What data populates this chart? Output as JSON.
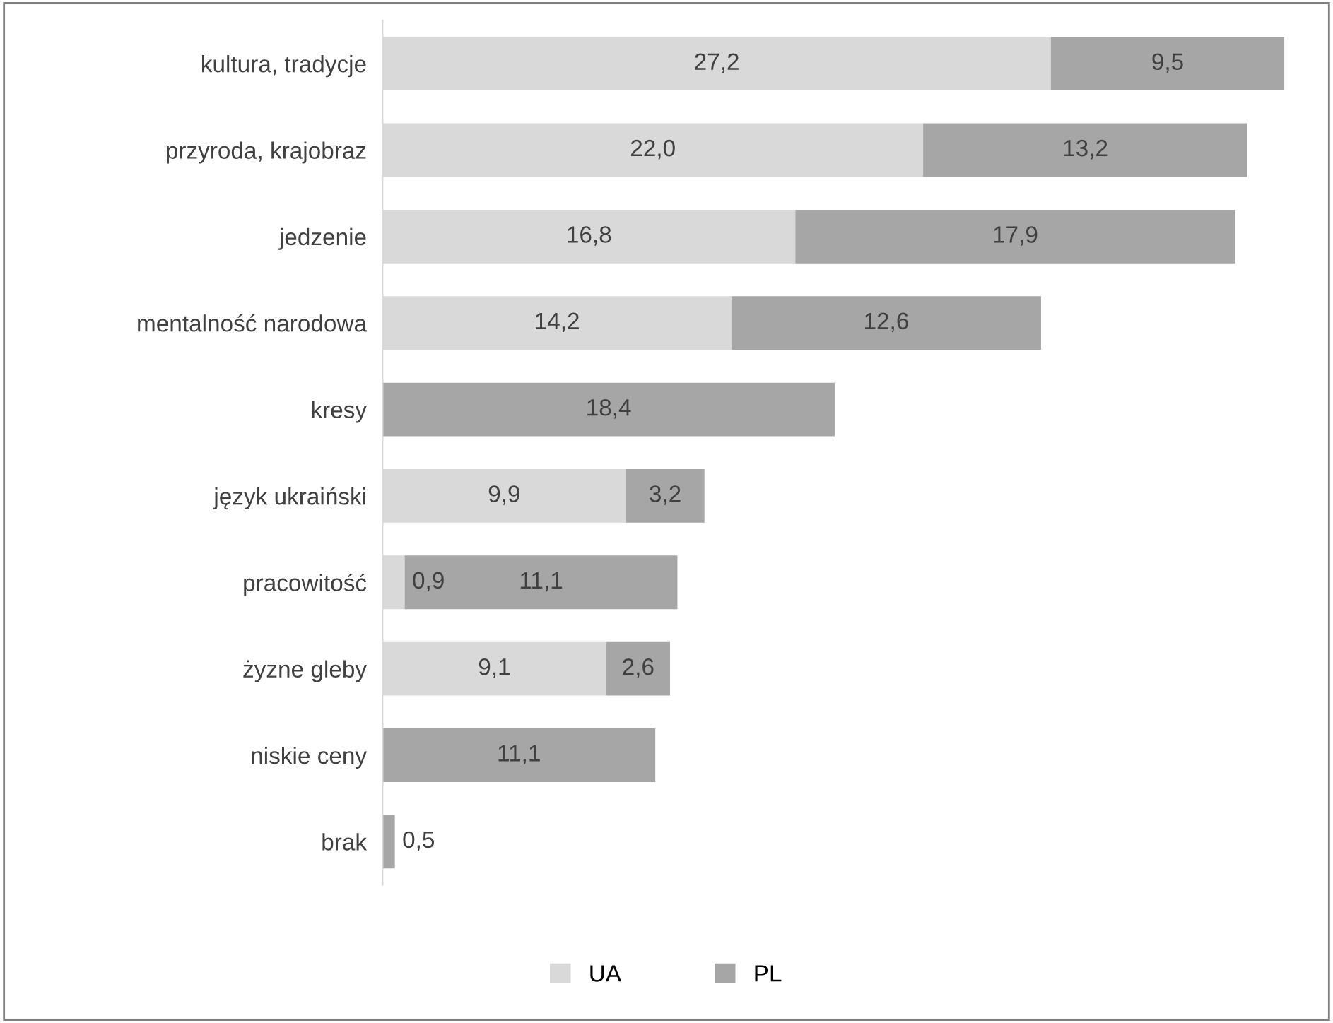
{
  "chart_data": {
    "type": "bar",
    "orientation": "horizontal",
    "stacked": true,
    "categories": [
      "kultura, tradycje",
      "przyroda, krajobraz",
      "jedzenie",
      "mentalność narodowa",
      "kresy",
      "język ukraiński",
      "pracowitość",
      "żyzne gleby",
      "niskie ceny",
      "brak"
    ],
    "series": [
      {
        "name": "UA",
        "color": "#d9d9d9",
        "values": [
          27.2,
          22.0,
          16.8,
          14.2,
          null,
          9.9,
          0.9,
          9.1,
          null,
          null
        ],
        "value_labels": [
          "27,2",
          "22,0",
          "16,8",
          "14,2",
          null,
          "9,9",
          "0,9",
          "9,1",
          null,
          null
        ]
      },
      {
        "name": "PL",
        "color": "#a6a6a6",
        "values": [
          9.5,
          13.2,
          17.9,
          12.6,
          18.4,
          3.2,
          11.1,
          2.6,
          11.1,
          0.5
        ],
        "value_labels": [
          "9,5",
          "13,2",
          "17,9",
          "12,6",
          "18,4",
          "3,2",
          "11,1",
          "2,6",
          "11,1",
          "0,5"
        ]
      }
    ],
    "legend": "bottom",
    "grid": false
  }
}
